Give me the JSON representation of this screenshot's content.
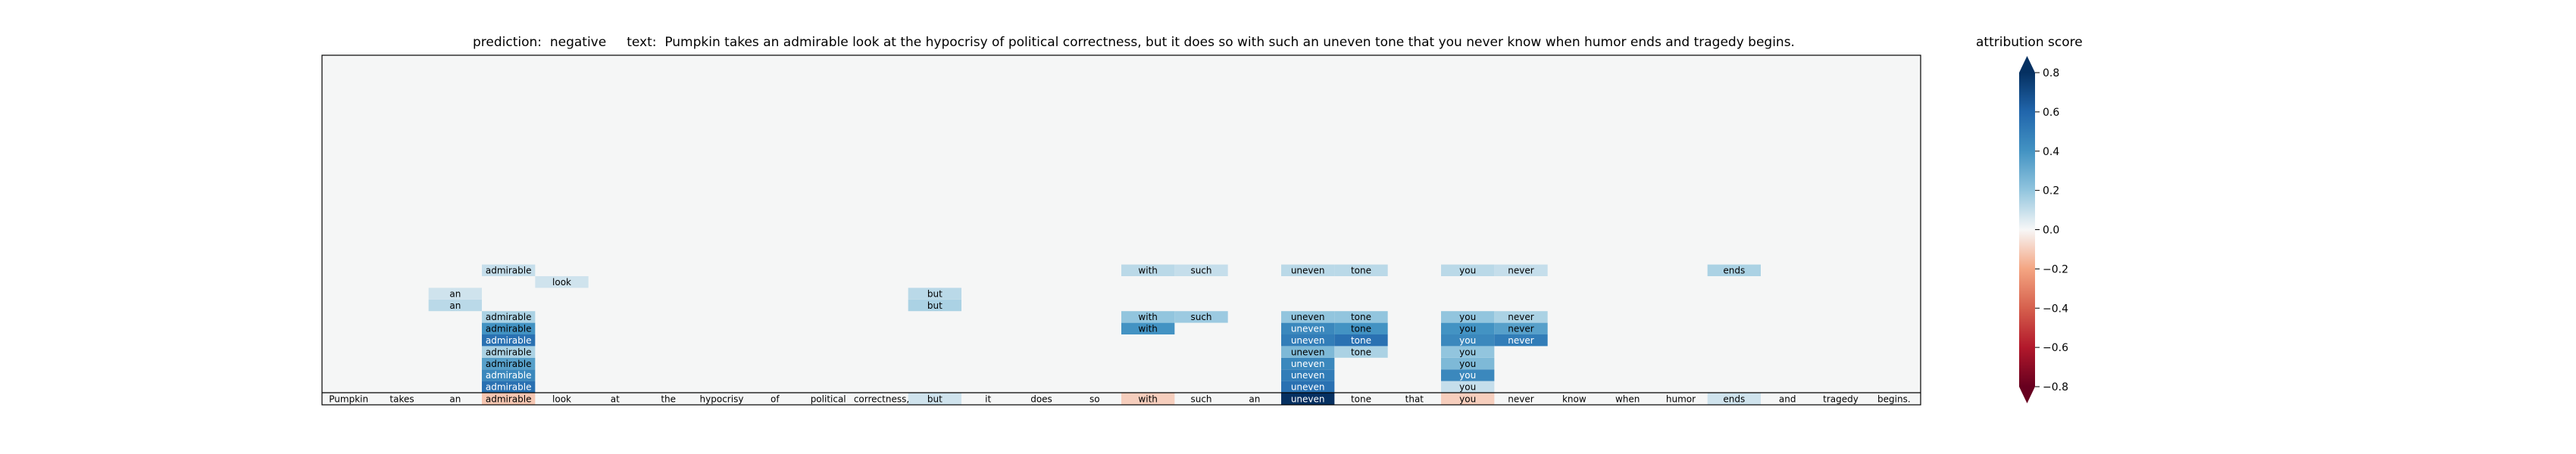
{
  "header": {
    "prediction_label": "prediction:",
    "prediction_value": "negative",
    "text_label": "text:",
    "text_value": "Pumpkin takes an admirable look at the hypocrisy of political correctness, but it does so with such an uneven tone that you never know when humor ends and tragedy begins."
  },
  "colorbar": {
    "title": "attribution score",
    "ticks": [
      "0.8",
      "0.6",
      "0.4",
      "0.2",
      "0.0",
      "−0.2",
      "−0.4",
      "−0.6",
      "−0.8"
    ],
    "range": [
      -0.8,
      0.8
    ],
    "extend": "both",
    "colormap": "RdBu"
  },
  "chart_data": {
    "type": "heatmap",
    "title": "",
    "tokens": [
      "Pumpkin",
      "takes",
      "an",
      "admirable",
      "look",
      "at",
      "the",
      "hypocrisy",
      "of",
      "political",
      "correctness,",
      "but",
      "it",
      "does",
      "so",
      "with",
      "such",
      "an",
      "uneven",
      "tone",
      "that",
      "you",
      "never",
      "know",
      "when",
      "humor",
      "ends",
      "and",
      "tragedy",
      "begins."
    ],
    "base_row_scores": [
      0.0,
      0.0,
      0.0,
      -0.12,
      0.0,
      0.0,
      0.0,
      0.0,
      0.0,
      0.0,
      0.0,
      0.08,
      0.0,
      0.0,
      0.0,
      -0.1,
      0.0,
      0.0,
      0.85,
      0.0,
      0.0,
      -0.1,
      0.0,
      0.0,
      0.0,
      0.0,
      0.08,
      0.0,
      0.0,
      0.0
    ],
    "rows": [
      {
        "level": 1,
        "cells": [
          {
            "token": "admirable",
            "score": 0.55
          },
          {
            "token": "uneven",
            "score": 0.55
          },
          {
            "token": "you",
            "score": 0.1
          }
        ]
      },
      {
        "level": 2,
        "cells": [
          {
            "token": "admirable",
            "score": 0.45
          },
          {
            "token": "uneven",
            "score": 0.5
          },
          {
            "token": "you",
            "score": 0.45
          }
        ]
      },
      {
        "level": 3,
        "cells": [
          {
            "token": "admirable",
            "score": 0.35
          },
          {
            "token": "uneven",
            "score": 0.45
          },
          {
            "token": "you",
            "score": 0.25
          }
        ]
      },
      {
        "level": 4,
        "cells": [
          {
            "token": "admirable",
            "score": 0.15
          },
          {
            "token": "uneven",
            "score": 0.25
          },
          {
            "token": "tone",
            "score": 0.15
          },
          {
            "token": "you",
            "score": 0.2
          }
        ]
      },
      {
        "level": 5,
        "cells": [
          {
            "token": "admirable",
            "score": 0.55
          },
          {
            "token": "uneven",
            "score": 0.5
          },
          {
            "token": "tone",
            "score": 0.55
          },
          {
            "token": "you",
            "score": 0.45
          },
          {
            "token": "never",
            "score": 0.5
          }
        ]
      },
      {
        "level": 6,
        "cells": [
          {
            "token": "admirable",
            "score": 0.4
          },
          {
            "token": "with",
            "score": 0.4
          },
          {
            "token": "uneven",
            "score": 0.45
          },
          {
            "token": "tone",
            "score": 0.4
          },
          {
            "token": "you",
            "score": 0.4
          },
          {
            "token": "never",
            "score": 0.35
          }
        ]
      },
      {
        "level": 7,
        "cells": [
          {
            "token": "admirable",
            "score": 0.15
          },
          {
            "token": "with",
            "score": 0.2
          },
          {
            "token": "such",
            "score": 0.18
          },
          {
            "token": "uneven",
            "score": 0.2
          },
          {
            "token": "tone",
            "score": 0.2
          },
          {
            "token": "you",
            "score": 0.2
          },
          {
            "token": "never",
            "score": 0.15
          }
        ]
      },
      {
        "level": 8,
        "cells": [
          {
            "token": "but",
            "score": 0.15
          },
          {
            "token": "an",
            "score": 0.12
          }
        ]
      },
      {
        "level": 9,
        "cells": [
          {
            "token": "but",
            "score": 0.12
          },
          {
            "token": "an",
            "score": 0.08
          }
        ]
      },
      {
        "level": 10,
        "cells": [
          {
            "token": "look",
            "score": 0.08
          }
        ]
      },
      {
        "level": 11,
        "cells": [
          {
            "token": "admirable",
            "score": 0.1
          },
          {
            "token": "with",
            "score": 0.12
          },
          {
            "token": "such",
            "score": 0.1
          },
          {
            "token": "uneven",
            "score": 0.12
          },
          {
            "token": "tone",
            "score": 0.12
          },
          {
            "token": "you",
            "score": 0.12
          },
          {
            "token": "never",
            "score": 0.1
          },
          {
            "token": "ends",
            "score": 0.15
          }
        ]
      }
    ]
  }
}
